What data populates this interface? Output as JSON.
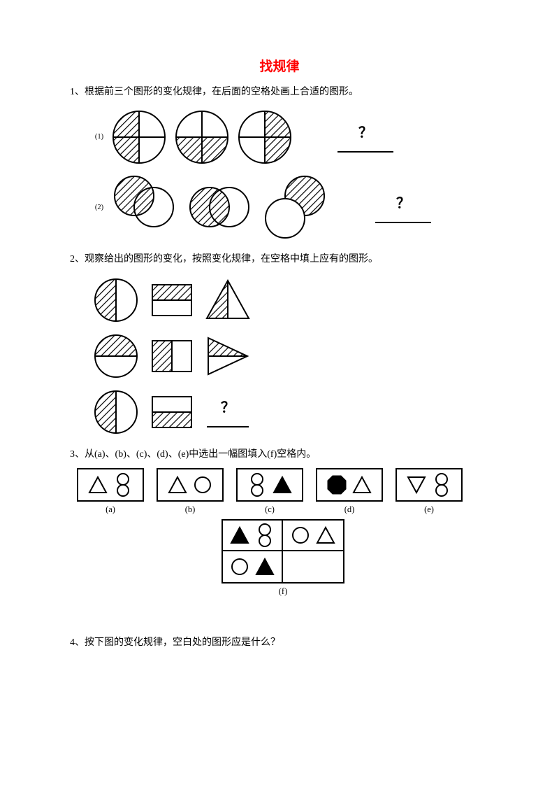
{
  "title": "找规律",
  "colors": {
    "title": "#ff0000",
    "text": "#000000",
    "stroke": "#000000",
    "bg": "#ffffff"
  },
  "font": {
    "body_pt": 14,
    "title_pt": 19
  },
  "q1": {
    "text": "1、根据前三个图形的变化规律，在后面的空格处画上合适的图形。",
    "rows": [
      {
        "label": "(1)",
        "circles": [
          {
            "quads": [
              true,
              false,
              true,
              false
            ]
          },
          {
            "quads": [
              false,
              false,
              true,
              true
            ]
          },
          {
            "quads": [
              false,
              true,
              false,
              true
            ]
          }
        ],
        "q": "？"
      },
      {
        "label": "(2)",
        "pairs": [
          {
            "front": "TL",
            "front_hatched": true,
            "back_hatched": false
          },
          {
            "front": "L",
            "front_hatched": true,
            "back_hatched": false
          },
          {
            "front": "BL",
            "front_hatched": false,
            "back_hatched": true
          }
        ],
        "q": "？"
      }
    ]
  },
  "q2": {
    "text": "2、观察给出的图形的变化，按照变化规律，在空格中填上应有的图形。",
    "grid": [
      [
        {
          "shape": "circle-halves",
          "orient": "vertical",
          "hatched": "left"
        },
        {
          "shape": "square-halves",
          "orient": "horizontal",
          "hatched": "top"
        },
        {
          "shape": "triangle-up"
        }
      ],
      [
        {
          "shape": "circle-halves",
          "orient": "horizontal",
          "hatched": "top"
        },
        {
          "shape": "square-halves",
          "orient": "vertical",
          "hatched": "left"
        },
        {
          "shape": "triangle-right"
        }
      ],
      [
        {
          "shape": "circle-halves",
          "orient": "vertical",
          "hatched": "left"
        },
        {
          "shape": "square-halves",
          "orient": "horizontal",
          "hatched": "bottom"
        },
        {
          "shape": "blank",
          "q": "？"
        }
      ]
    ]
  },
  "q3": {
    "text": "3、从(a)、(b)、(c)、(d)、(e)中选出一幅图填入(f)空格内。",
    "options": [
      {
        "label": "(a)",
        "items": [
          {
            "s": "tri",
            "fill": false
          },
          {
            "s": "two-circ-v",
            "fill": false
          }
        ]
      },
      {
        "label": "(b)",
        "items": [
          {
            "s": "tri",
            "fill": false
          },
          {
            "s": "circ",
            "fill": false
          }
        ]
      },
      {
        "label": "(c)",
        "items": [
          {
            "s": "two-circ-v",
            "fill": false
          },
          {
            "s": "tri",
            "fill": true
          }
        ]
      },
      {
        "label": "(d)",
        "items": [
          {
            "s": "oct",
            "fill": true
          },
          {
            "s": "tri",
            "fill": false
          }
        ]
      },
      {
        "label": "(e)",
        "items": [
          {
            "s": "tri-down",
            "fill": false
          },
          {
            "s": "two-circ-v",
            "fill": false
          }
        ]
      }
    ],
    "grid": {
      "label": "(f)",
      "cells": [
        [
          [
            {
              "s": "tri",
              "fill": true
            },
            {
              "s": "two-circ-v",
              "fill": false
            }
          ],
          [
            {
              "s": "circ",
              "fill": false
            },
            {
              "s": "tri",
              "fill": false
            }
          ]
        ],
        [
          [
            {
              "s": "circ",
              "fill": false
            },
            {
              "s": "tri",
              "fill": true
            }
          ],
          []
        ]
      ]
    }
  },
  "q4": {
    "text": "4、按下图的变化规律，空白处的图形应是什么？"
  }
}
